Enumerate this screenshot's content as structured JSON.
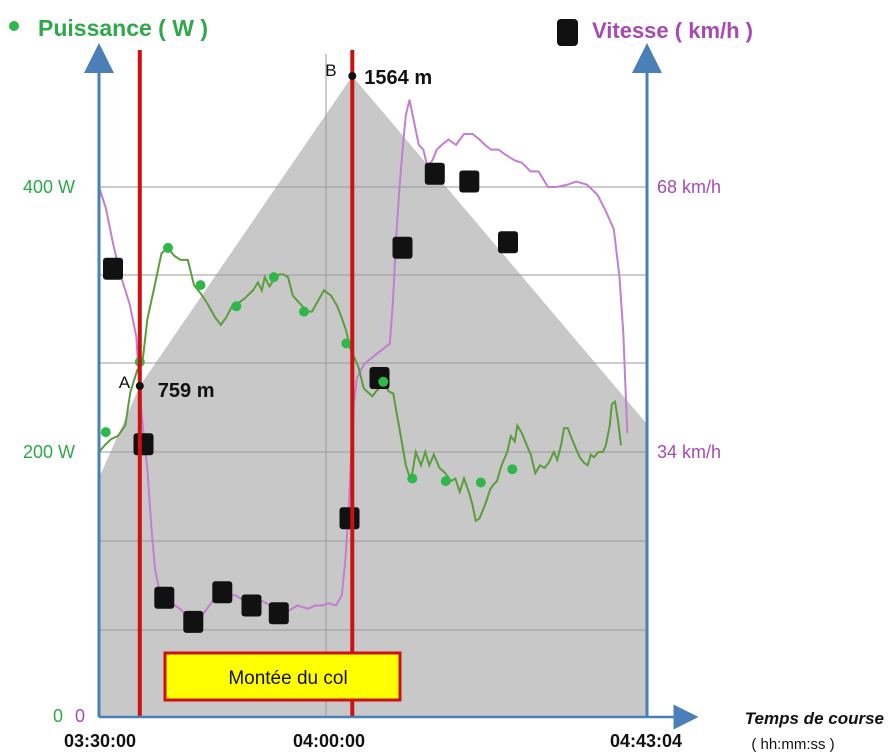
{
  "chart_data": {
    "type": "line",
    "x_axis": {
      "label": "Temps de course",
      "unit_label": "( hh:mm:ss )",
      "ticks": [
        "03:30:00",
        "04:00:00",
        "04:43:04"
      ],
      "range": [
        "03:30:00",
        "04:43:04"
      ]
    },
    "y_left": {
      "title": "Puissance ( W )",
      "ticks": [
        "0",
        "200 W",
        "400 W"
      ],
      "range": [
        0,
        530
      ],
      "color": "#2ea84a"
    },
    "y_right": {
      "title": "Vitesse ( km/h )",
      "ticks": [
        "0",
        "34 km/h",
        "68 km/h"
      ],
      "range": [
        0,
        90
      ],
      "color": "#a64ab0"
    },
    "altitude_area": {
      "color": "#c8c8c8",
      "points": [
        {
          "t": "03:30:00",
          "alt": 520
        },
        {
          "t": "03:35:26",
          "alt": 759
        },
        {
          "t": "04:03:46",
          "alt": 1564
        },
        {
          "t": "04:43:04",
          "alt": 660
        }
      ]
    },
    "power_series": {
      "name": "Puissance",
      "color": "#5a9e3c",
      "marker_color": "#2eb84a",
      "points": [
        {
          "t": "03:30:00",
          "w": 200
        },
        {
          "t": "03:30:54",
          "w": 206
        },
        {
          "t": "03:31:40",
          "w": 210
        },
        {
          "t": "03:32:30",
          "w": 212
        },
        {
          "t": "03:33:30",
          "w": 220
        },
        {
          "t": "03:34:10",
          "w": 245
        },
        {
          "t": "03:35:06",
          "w": 262
        },
        {
          "t": "03:35:48",
          "w": 268
        },
        {
          "t": "03:36:26",
          "w": 300
        },
        {
          "t": "03:37:24",
          "w": 325
        },
        {
          "t": "03:38:20",
          "w": 350
        },
        {
          "t": "03:39:12",
          "w": 354
        },
        {
          "t": "03:40:02",
          "w": 348
        },
        {
          "t": "03:40:52",
          "w": 345
        },
        {
          "t": "03:41:50",
          "w": 345
        },
        {
          "t": "03:42:40",
          "w": 326
        },
        {
          "t": "03:43:30",
          "w": 320
        },
        {
          "t": "03:44:28",
          "w": 312
        },
        {
          "t": "03:45:26",
          "w": 302
        },
        {
          "t": "03:46:14",
          "w": 296
        },
        {
          "t": "03:47:00",
          "w": 302
        },
        {
          "t": "03:47:44",
          "w": 310
        },
        {
          "t": "03:48:30",
          "w": 312
        },
        {
          "t": "03:49:26",
          "w": 316
        },
        {
          "t": "03:50:32",
          "w": 322
        },
        {
          "t": "03:51:12",
          "w": 328
        },
        {
          "t": "03:51:42",
          "w": 322
        },
        {
          "t": "03:52:06",
          "w": 332
        },
        {
          "t": "03:52:44",
          "w": 325
        },
        {
          "t": "03:53:18",
          "w": 330
        },
        {
          "t": "03:54:04",
          "w": 334
        },
        {
          "t": "03:54:32",
          "w": 334
        },
        {
          "t": "03:55:12",
          "w": 332
        },
        {
          "t": "03:55:50",
          "w": 318
        },
        {
          "t": "03:56:28",
          "w": 314
        },
        {
          "t": "03:57:08",
          "w": 310
        },
        {
          "t": "03:57:44",
          "w": 306
        },
        {
          "t": "03:58:24",
          "w": 306
        },
        {
          "t": "03:59:12",
          "w": 314
        },
        {
          "t": "04:00:00",
          "w": 322
        },
        {
          "t": "04:00:56",
          "w": 318
        },
        {
          "t": "04:01:46",
          "w": 310
        },
        {
          "t": "04:02:26",
          "w": 300
        },
        {
          "t": "04:02:56",
          "w": 292
        },
        {
          "t": "04:03:30",
          "w": 278
        },
        {
          "t": "04:04:36",
          "w": 264
        },
        {
          "t": "04:05:18",
          "w": 248
        },
        {
          "t": "04:06:26",
          "w": 242
        },
        {
          "t": "04:06:58",
          "w": 246
        },
        {
          "t": "04:08:04",
          "w": 252
        },
        {
          "t": "04:08:36",
          "w": 246
        },
        {
          "t": "04:09:14",
          "w": 244
        },
        {
          "t": "04:09:40",
          "w": 230
        },
        {
          "t": "04:10:14",
          "w": 212
        },
        {
          "t": "04:10:54",
          "w": 190
        },
        {
          "t": "04:11:36",
          "w": 178
        },
        {
          "t": "04:12:14",
          "w": 200
        },
        {
          "t": "04:12:56",
          "w": 190
        },
        {
          "t": "04:13:30",
          "w": 200
        },
        {
          "t": "04:14:02",
          "w": 190
        },
        {
          "t": "04:14:38",
          "w": 198
        },
        {
          "t": "04:15:24",
          "w": 188
        },
        {
          "t": "04:16:10",
          "w": 184
        },
        {
          "t": "04:16:56",
          "w": 178
        },
        {
          "t": "04:17:30",
          "w": 180
        },
        {
          "t": "04:18:06",
          "w": 170
        },
        {
          "t": "04:18:40",
          "w": 180
        },
        {
          "t": "04:19:18",
          "w": 170
        },
        {
          "t": "04:19:48",
          "w": 160
        },
        {
          "t": "04:20:14",
          "w": 148
        },
        {
          "t": "04:20:44",
          "w": 150
        },
        {
          "t": "04:21:28",
          "w": 160
        },
        {
          "t": "04:22:10",
          "w": 172
        },
        {
          "t": "04:22:42",
          "w": 176
        },
        {
          "t": "04:23:04",
          "w": 178
        },
        {
          "t": "04:23:40",
          "w": 190
        },
        {
          "t": "04:24:26",
          "w": 200
        },
        {
          "t": "04:24:54",
          "w": 212
        },
        {
          "t": "04:25:26",
          "w": 208
        },
        {
          "t": "04:25:46",
          "w": 220
        },
        {
          "t": "04:26:24",
          "w": 214
        },
        {
          "t": "04:27:02",
          "w": 205
        },
        {
          "t": "04:27:34",
          "w": 198
        },
        {
          "t": "04:28:10",
          "w": 184
        },
        {
          "t": "04:28:48",
          "w": 190
        },
        {
          "t": "04:29:24",
          "w": 188
        },
        {
          "t": "04:29:58",
          "w": 192
        },
        {
          "t": "04:30:38",
          "w": 200
        },
        {
          "t": "04:31:06",
          "w": 194
        },
        {
          "t": "04:31:38",
          "w": 206
        },
        {
          "t": "04:32:00",
          "w": 218
        },
        {
          "t": "04:32:30",
          "w": 218
        },
        {
          "t": "04:33:02",
          "w": 210
        },
        {
          "t": "04:33:38",
          "w": 202
        },
        {
          "t": "04:34:06",
          "w": 196
        },
        {
          "t": "04:34:38",
          "w": 192
        },
        {
          "t": "04:35:10",
          "w": 190
        },
        {
          "t": "04:35:34",
          "w": 198
        },
        {
          "t": "04:36:00",
          "w": 196
        },
        {
          "t": "04:36:34",
          "w": 200
        },
        {
          "t": "04:37:10",
          "w": 200
        },
        {
          "t": "04:37:34",
          "w": 205
        },
        {
          "t": "04:38:06",
          "w": 220
        },
        {
          "t": "04:38:22",
          "w": 236
        },
        {
          "t": "04:38:48",
          "w": 238
        },
        {
          "t": "04:39:14",
          "w": 222
        },
        {
          "t": "04:39:36",
          "w": 205
        }
      ],
      "markers": [
        {
          "t": "03:30:54",
          "w": 215
        },
        {
          "t": "03:35:26",
          "w": 268
        },
        {
          "t": "03:39:12",
          "w": 354
        },
        {
          "t": "03:43:32",
          "w": 326
        },
        {
          "t": "03:48:18",
          "w": 310
        },
        {
          "t": "03:53:18",
          "w": 332
        },
        {
          "t": "03:57:20",
          "w": 306
        },
        {
          "t": "04:02:58",
          "w": 282
        },
        {
          "t": "04:07:54",
          "w": 253
        },
        {
          "t": "04:11:46",
          "w": 180
        },
        {
          "t": "04:16:14",
          "w": 178
        },
        {
          "t": "04:20:54",
          "w": 177
        },
        {
          "t": "04:25:06",
          "w": 187
        }
      ]
    },
    "speed_series": {
      "name": "Vitesse",
      "color": "#c27ed0",
      "marker_color": "#111111",
      "points": [
        {
          "t": "03:30:00",
          "kmh": 68.0
        },
        {
          "t": "03:30:54",
          "kmh": 65.3
        },
        {
          "t": "03:31:54",
          "kmh": 60.6
        },
        {
          "t": "03:32:54",
          "kmh": 56.6
        },
        {
          "t": "03:34:06",
          "kmh": 52.9
        },
        {
          "t": "03:34:58",
          "kmh": 48.8
        },
        {
          "t": "03:35:30",
          "kmh": 40.8
        },
        {
          "t": "03:35:56",
          "kmh": 36.4
        },
        {
          "t": "03:36:28",
          "kmh": 31.6
        },
        {
          "t": "03:36:58",
          "kmh": 24.5
        },
        {
          "t": "03:37:28",
          "kmh": 19.0
        },
        {
          "t": "03:38:02",
          "kmh": 16.3
        },
        {
          "t": "03:38:42",
          "kmh": 14.6
        },
        {
          "t": "03:39:38",
          "kmh": 14.6
        },
        {
          "t": "03:40:46",
          "kmh": 13.9
        },
        {
          "t": "03:41:50",
          "kmh": 12.9
        },
        {
          "t": "03:43:08",
          "kmh": 12.2
        },
        {
          "t": "03:44:24",
          "kmh": 13.9
        },
        {
          "t": "03:45:44",
          "kmh": 15.6
        },
        {
          "t": "03:47:00",
          "kmh": 15.6
        },
        {
          "t": "03:48:12",
          "kmh": 15.6
        },
        {
          "t": "03:49:24",
          "kmh": 14.9
        },
        {
          "t": "03:50:32",
          "kmh": 14.6
        },
        {
          "t": "03:51:44",
          "kmh": 14.9
        },
        {
          "t": "03:52:54",
          "kmh": 14.3
        },
        {
          "t": "03:54:04",
          "kmh": 13.6
        },
        {
          "t": "03:55:12",
          "kmh": 13.6
        },
        {
          "t": "03:56:28",
          "kmh": 14.3
        },
        {
          "t": "03:57:52",
          "kmh": 13.9
        },
        {
          "t": "03:58:48",
          "kmh": 14.3
        },
        {
          "t": "03:59:48",
          "kmh": 14.3
        },
        {
          "t": "04:00:32",
          "kmh": 14.6
        },
        {
          "t": "04:01:36",
          "kmh": 14.3
        },
        {
          "t": "04:02:22",
          "kmh": 15.6
        },
        {
          "t": "04:02:52",
          "kmh": 20.4
        },
        {
          "t": "04:03:16",
          "kmh": 26.2
        },
        {
          "t": "04:03:38",
          "kmh": 34.0
        },
        {
          "t": "04:03:58",
          "kmh": 40.1
        },
        {
          "t": "04:04:22",
          "kmh": 43.5
        },
        {
          "t": "04:05:18",
          "kmh": 45.2
        },
        {
          "t": "04:06:06",
          "kmh": 45.9
        },
        {
          "t": "04:07:26",
          "kmh": 46.9
        },
        {
          "t": "04:08:46",
          "kmh": 47.9
        },
        {
          "t": "04:09:10",
          "kmh": 53.0
        },
        {
          "t": "04:09:40",
          "kmh": 62.2
        },
        {
          "t": "04:10:04",
          "kmh": 68.0
        },
        {
          "t": "04:10:30",
          "kmh": 73.1
        },
        {
          "t": "04:10:54",
          "kmh": 77.2
        },
        {
          "t": "04:11:24",
          "kmh": 79.2
        },
        {
          "t": "04:12:02",
          "kmh": 76.2
        },
        {
          "t": "04:12:38",
          "kmh": 73.4
        },
        {
          "t": "04:13:14",
          "kmh": 72.8
        },
        {
          "t": "04:13:46",
          "kmh": 70.7
        },
        {
          "t": "04:14:26",
          "kmh": 71.4
        },
        {
          "t": "04:15:02",
          "kmh": 72.8
        },
        {
          "t": "04:15:42",
          "kmh": 73.4
        },
        {
          "t": "04:16:36",
          "kmh": 74.1
        },
        {
          "t": "04:17:36",
          "kmh": 73.4
        },
        {
          "t": "04:18:40",
          "kmh": 74.8
        },
        {
          "t": "04:19:48",
          "kmh": 74.8
        },
        {
          "t": "04:20:44",
          "kmh": 74.1
        },
        {
          "t": "04:21:28",
          "kmh": 73.4
        },
        {
          "t": "04:22:16",
          "kmh": 72.8
        },
        {
          "t": "04:23:16",
          "kmh": 72.8
        },
        {
          "t": "04:24:16",
          "kmh": 72.1
        },
        {
          "t": "04:25:26",
          "kmh": 71.4
        },
        {
          "t": "04:26:24",
          "kmh": 71.1
        },
        {
          "t": "04:27:32",
          "kmh": 70.0
        },
        {
          "t": "04:28:36",
          "kmh": 70.0
        },
        {
          "t": "04:29:52",
          "kmh": 68.0
        },
        {
          "t": "04:31:00",
          "kmh": 68.0
        },
        {
          "t": "04:32:26",
          "kmh": 68.3
        },
        {
          "t": "04:33:38",
          "kmh": 68.7
        },
        {
          "t": "04:35:04",
          "kmh": 68.3
        },
        {
          "t": "04:36:28",
          "kmh": 67.0
        },
        {
          "t": "04:37:34",
          "kmh": 64.9
        },
        {
          "t": "04:38:38",
          "kmh": 62.6
        },
        {
          "t": "04:39:24",
          "kmh": 56.4
        },
        {
          "t": "04:39:54",
          "kmh": 49.3
        },
        {
          "t": "04:40:10",
          "kmh": 42.8
        },
        {
          "t": "04:40:26",
          "kmh": 36.4
        }
      ],
      "markers": [
        {
          "t": "03:31:52",
          "kmh": 57.5
        },
        {
          "t": "03:35:56",
          "kmh": 35.0
        },
        {
          "t": "03:38:42",
          "kmh": 15.3
        },
        {
          "t": "03:42:34",
          "kmh": 12.2
        },
        {
          "t": "03:46:26",
          "kmh": 16.0
        },
        {
          "t": "03:50:20",
          "kmh": 14.3
        },
        {
          "t": "03:53:58",
          "kmh": 13.3
        },
        {
          "t": "04:03:24",
          "kmh": 25.5
        },
        {
          "t": "04:07:24",
          "kmh": 43.5
        },
        {
          "t": "04:10:28",
          "kmh": 60.2
        },
        {
          "t": "04:14:46",
          "kmh": 69.7
        },
        {
          "t": "04:19:22",
          "kmh": 68.7
        },
        {
          "t": "04:24:32",
          "kmh": 60.9
        }
      ]
    },
    "climb_lines_color": "#cc1111",
    "grid": true,
    "annotations": {
      "point_a": {
        "letter": "A",
        "label": "759 m",
        "t": "03:35:26",
        "alt": 759
      },
      "point_b": {
        "letter": "B",
        "label": "1564 m",
        "t": "04:03:46",
        "alt": 1564
      },
      "segment_label": "Montée du col"
    }
  }
}
